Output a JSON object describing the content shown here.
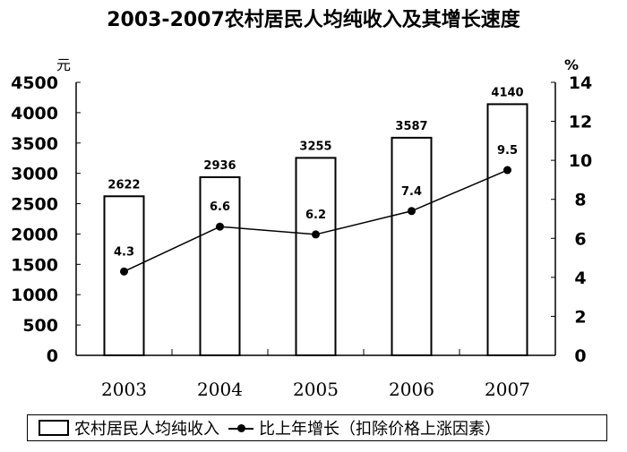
{
  "chart_data": {
    "type": "bar+line",
    "title": "2003-2007农村居民人均纯收入及其增长速度",
    "categories": [
      "2003",
      "2004",
      "2005",
      "2006",
      "2007"
    ],
    "left_axis": {
      "unit": "元",
      "ylim": [
        0,
        4500
      ],
      "ticks": [
        "0",
        "500",
        "1000",
        "1500",
        "2000",
        "2500",
        "3000",
        "3500",
        "4000",
        "4500"
      ]
    },
    "right_axis": {
      "unit": "%",
      "ylim": [
        0,
        14
      ],
      "ticks": [
        "0",
        "2",
        "4",
        "6",
        "8",
        "10",
        "12",
        "14"
      ]
    },
    "series": [
      {
        "name": "农村居民人均纯收入",
        "type": "bar",
        "axis": "left",
        "values": [
          2622,
          2936,
          3255,
          3587,
          4140
        ]
      },
      {
        "name": "比上年增长（扣除价格上涨因素）",
        "type": "line",
        "axis": "right",
        "values": [
          4.3,
          6.6,
          6.2,
          7.4,
          9.5
        ]
      }
    ],
    "legend": "bottom"
  }
}
